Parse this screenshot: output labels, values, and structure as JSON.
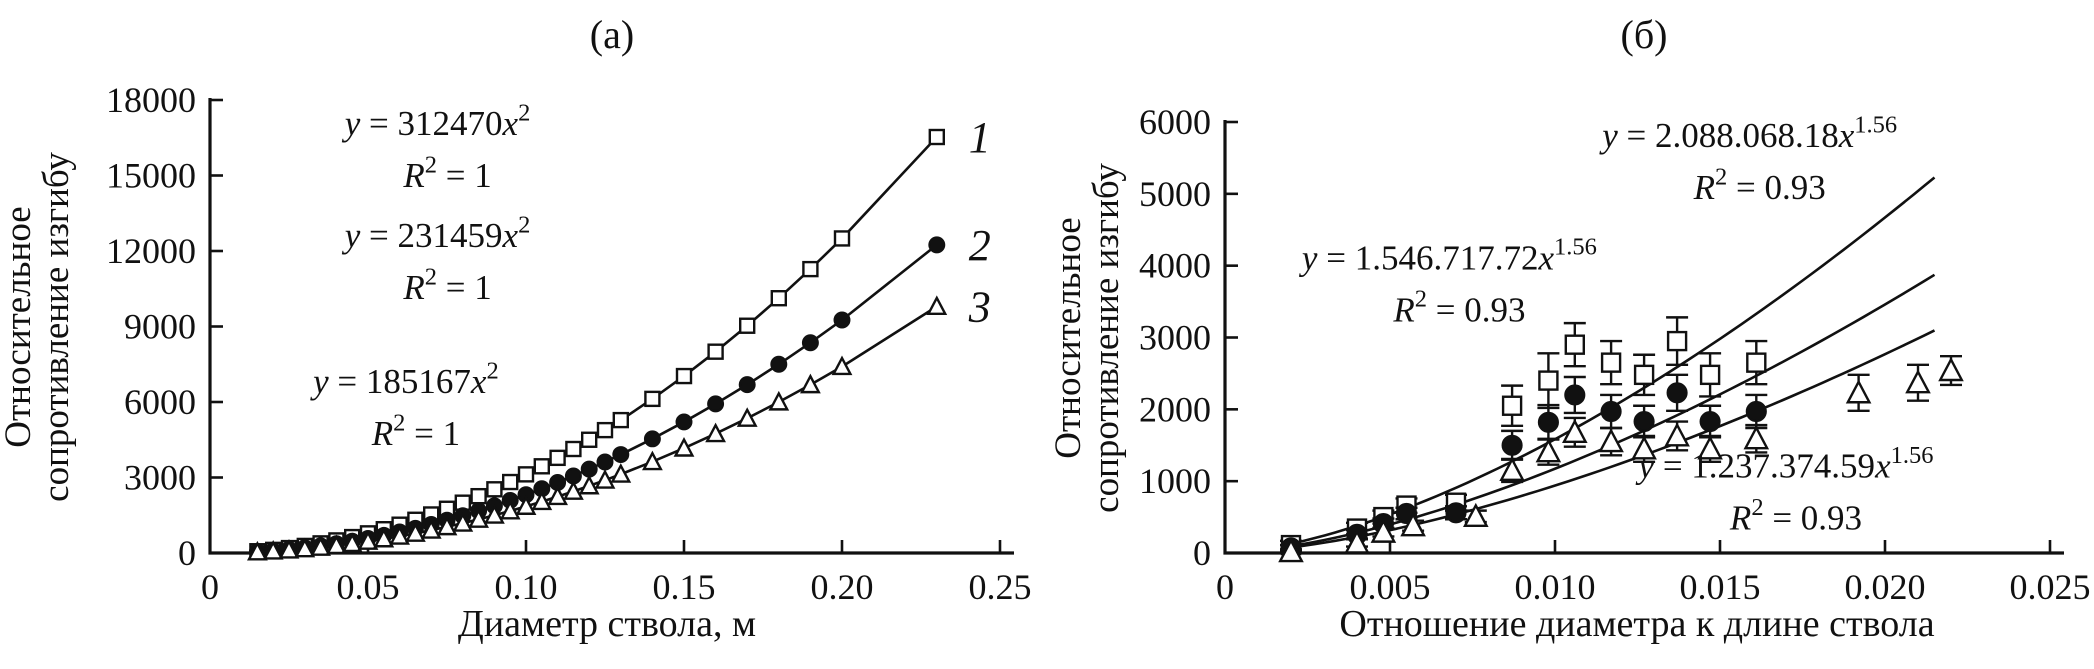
{
  "chart_data": [
    {
      "id": "a",
      "type": "line",
      "title": "(а)",
      "xlabel": "Диаметр ствола, м",
      "ylabel_lines": [
        "Относительное",
        "сопротивление изгибу"
      ],
      "x_axis": {
        "min": 0,
        "max": 0.25,
        "ticks": [
          0,
          0.05,
          0.1,
          0.15,
          0.2,
          0.25
        ],
        "tick_labels": [
          "0",
          "0.05",
          "0.10",
          "0.15",
          "0.20",
          "0.25"
        ]
      },
      "y_axis": {
        "min": 0,
        "max": 18000,
        "ticks": [
          0,
          3000,
          6000,
          9000,
          12000,
          15000,
          18000
        ],
        "tick_labels": [
          "0",
          "3000",
          "6000",
          "9000",
          "12000",
          "15000",
          "18000"
        ]
      },
      "grid": false,
      "legend_position": "line-end-labels",
      "series": [
        {
          "label": "1",
          "marker": "square",
          "fill": "open",
          "coef": 312470,
          "exp": 2,
          "x": [
            0.015,
            0.02,
            0.025,
            0.03,
            0.035,
            0.04,
            0.045,
            0.05,
            0.055,
            0.06,
            0.065,
            0.07,
            0.075,
            0.08,
            0.085,
            0.09,
            0.095,
            0.1,
            0.105,
            0.11,
            0.115,
            0.12,
            0.125,
            0.13,
            0.14,
            0.15,
            0.16,
            0.17,
            0.18,
            0.19,
            0.2,
            0.23
          ]
        },
        {
          "label": "2",
          "marker": "circle",
          "fill": "solid",
          "coef": 231459,
          "exp": 2,
          "x": [
            0.015,
            0.02,
            0.025,
            0.03,
            0.035,
            0.04,
            0.045,
            0.05,
            0.055,
            0.06,
            0.065,
            0.07,
            0.075,
            0.08,
            0.085,
            0.09,
            0.095,
            0.1,
            0.105,
            0.11,
            0.115,
            0.12,
            0.125,
            0.13,
            0.14,
            0.15,
            0.16,
            0.17,
            0.18,
            0.19,
            0.2,
            0.23
          ]
        },
        {
          "label": "3",
          "marker": "triangle",
          "fill": "open",
          "coef": 185167,
          "exp": 2,
          "x": [
            0.015,
            0.02,
            0.025,
            0.03,
            0.035,
            0.04,
            0.045,
            0.05,
            0.055,
            0.06,
            0.065,
            0.07,
            0.075,
            0.08,
            0.085,
            0.09,
            0.095,
            0.1,
            0.105,
            0.11,
            0.115,
            0.12,
            0.125,
            0.13,
            0.14,
            0.15,
            0.16,
            0.17,
            0.18,
            0.19,
            0.2,
            0.23
          ]
        }
      ],
      "annotations": [
        {
          "x": 0.072,
          "y": 16600,
          "lines": [
            "y = 312470x^2^",
            "R^2^ = 1"
          ]
        },
        {
          "x": 0.072,
          "y": 12150,
          "lines": [
            "y = 231459x^2^",
            "R^2^ = 1"
          ]
        },
        {
          "x": 0.062,
          "y": 6350,
          "lines": [
            "y = 185167x^2^",
            "R^2^ = 1"
          ]
        }
      ]
    },
    {
      "id": "b",
      "type": "scatter",
      "title": "(б)",
      "xlabel": "Отношение диаметра к длине ствола",
      "ylabel_lines": [
        "Относительное",
        "сопротивление изгибу"
      ],
      "x_axis": {
        "min": 0,
        "max": 0.025,
        "ticks": [
          0,
          0.005,
          0.01,
          0.015,
          0.02,
          0.025
        ],
        "tick_labels": [
          "0",
          "0.005",
          "0.010",
          "0.015",
          "0.020",
          "0.025"
        ]
      },
      "y_axis": {
        "min": 0,
        "max": 6000,
        "ticks": [
          0,
          1000,
          2000,
          3000,
          4000,
          5000,
          6000
        ],
        "tick_labels": [
          "0",
          "1000",
          "2000",
          "3000",
          "4000",
          "5000",
          "6000"
        ]
      },
      "grid": false,
      "fits": [
        {
          "coef": 2088068.18,
          "exp": 1.56,
          "x_start": 0.0018,
          "x_end": 0.0215
        },
        {
          "coef": 1546717.72,
          "exp": 1.56,
          "x_start": 0.0018,
          "x_end": 0.0215
        },
        {
          "coef": 1237374.59,
          "exp": 1.56,
          "x_start": 0.0018,
          "x_end": 0.0215
        }
      ],
      "series": [
        {
          "label": "squares",
          "marker": "square",
          "fill": "open",
          "points": [
            [
              0.002,
              110,
              60
            ],
            [
              0.004,
              340,
              80
            ],
            [
              0.0048,
              500,
              90
            ],
            [
              0.0055,
              660,
              100
            ],
            [
              0.007,
              700,
              110
            ],
            [
              0.0087,
              2050,
              280
            ],
            [
              0.0098,
              2400,
              380
            ],
            [
              0.0106,
              2900,
              300
            ],
            [
              0.0117,
              2650,
              300
            ],
            [
              0.0127,
              2480,
              280
            ],
            [
              0.0137,
              2950,
              330
            ],
            [
              0.0147,
              2480,
              300
            ],
            [
              0.0161,
              2650,
              300
            ]
          ]
        },
        {
          "label": "circles",
          "marker": "circle",
          "fill": "solid",
          "points": [
            [
              0.002,
              70,
              40
            ],
            [
              0.004,
              260,
              60
            ],
            [
              0.0048,
              410,
              70
            ],
            [
              0.0055,
              550,
              80
            ],
            [
              0.007,
              560,
              90
            ],
            [
              0.0087,
              1500,
              200
            ],
            [
              0.0098,
              1820,
              240
            ],
            [
              0.0106,
              2200,
              250
            ],
            [
              0.0117,
              1970,
              230
            ],
            [
              0.0127,
              1830,
              220
            ],
            [
              0.0137,
              2230,
              250
            ],
            [
              0.0147,
              1830,
              220
            ],
            [
              0.0161,
              1970,
              230
            ]
          ]
        },
        {
          "label": "triangles",
          "marker": "triangle",
          "fill": "open",
          "points": [
            [
              0.002,
              20,
              30
            ],
            [
              0.004,
              140,
              50
            ],
            [
              0.0048,
              290,
              60
            ],
            [
              0.0057,
              380,
              70
            ],
            [
              0.0076,
              510,
              80
            ],
            [
              0.0087,
              1150,
              160
            ],
            [
              0.0098,
              1410,
              180
            ],
            [
              0.0106,
              1680,
              200
            ],
            [
              0.0117,
              1550,
              190
            ],
            [
              0.0127,
              1450,
              180
            ],
            [
              0.0137,
              1630,
              200
            ],
            [
              0.0147,
              1450,
              180
            ],
            [
              0.0161,
              1590,
              190
            ],
            [
              0.0192,
              2230,
              250
            ],
            [
              0.021,
              2370,
              250
            ],
            [
              0.022,
              2540,
              200
            ]
          ]
        }
      ],
      "annotations": [
        {
          "x": 0.0159,
          "y": 5650,
          "lines": [
            "y = 2.088.068.18x^1.56^",
            "R^2^ = 0.93"
          ]
        },
        {
          "x": 0.0068,
          "y": 3950,
          "lines": [
            "y = 1.546.717.72x^1.56^",
            "R^2^ = 0.93"
          ]
        },
        {
          "x": 0.017,
          "y": 1050,
          "lines": [
            "y = 1.237.374.59x^1.56^",
            "R^2^ = 0.93"
          ]
        }
      ]
    }
  ]
}
